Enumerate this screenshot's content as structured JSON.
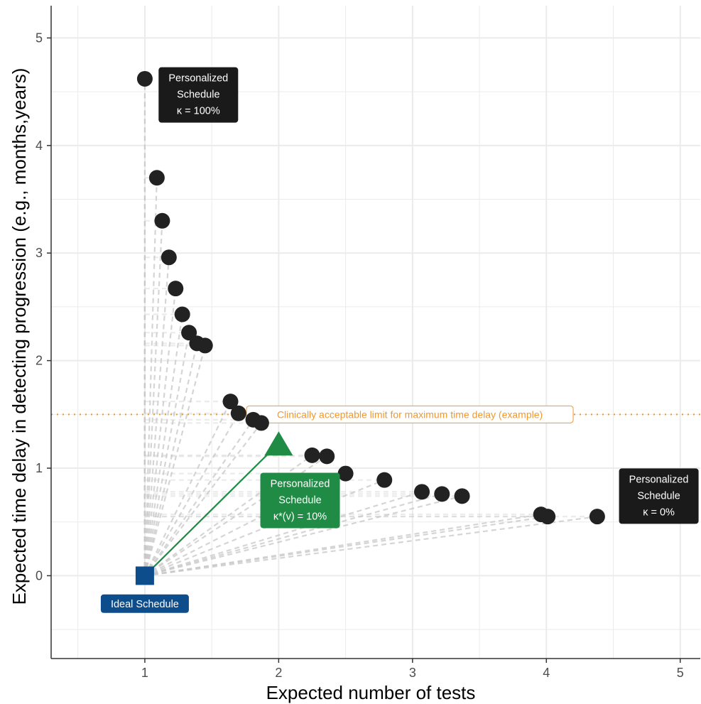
{
  "chart_data": {
    "type": "scatter",
    "xlabel": "Expected number of tests",
    "ylabel": "Expected time delay in detecting progression (e.g., months,years)",
    "xlim": [
      0.3,
      5.15
    ],
    "ylim": [
      -0.77,
      5.3
    ],
    "x_ticks": [
      1,
      2,
      3,
      4,
      5
    ],
    "y_ticks": [
      0,
      1,
      2,
      3,
      4,
      5
    ],
    "grid": true,
    "colors": {
      "points": "#222222",
      "ideal": "#0e4d8c",
      "optimal": "#1f8b45",
      "limit": "#f0982e",
      "guide": "#c8c8c8",
      "grid": "#ebebeb",
      "label_dark": "#1a1a1a"
    },
    "ideal_schedule": {
      "x": 1,
      "y": 0,
      "label": "Ideal Schedule"
    },
    "optimal_schedule": {
      "x": 2.0,
      "y": 1.23,
      "label_lines": [
        "Personalized",
        "Schedule",
        "κ*(v) = 10%"
      ]
    },
    "reference_line": {
      "y": 1.5,
      "label": "Clinically acceptable limit for maximum time delay (example)"
    },
    "points": [
      {
        "x": 1.0,
        "y": 4.62
      },
      {
        "x": 1.09,
        "y": 3.7
      },
      {
        "x": 1.13,
        "y": 3.3
      },
      {
        "x": 1.18,
        "y": 2.96
      },
      {
        "x": 1.23,
        "y": 2.67
      },
      {
        "x": 1.28,
        "y": 2.43
      },
      {
        "x": 1.33,
        "y": 2.26
      },
      {
        "x": 1.39,
        "y": 2.16
      },
      {
        "x": 1.45,
        "y": 2.14
      },
      {
        "x": 1.64,
        "y": 1.62
      },
      {
        "x": 1.7,
        "y": 1.51
      },
      {
        "x": 1.81,
        "y": 1.45
      },
      {
        "x": 1.87,
        "y": 1.42
      },
      {
        "x": 2.25,
        "y": 1.12
      },
      {
        "x": 2.36,
        "y": 1.11
      },
      {
        "x": 2.5,
        "y": 0.95
      },
      {
        "x": 2.79,
        "y": 0.89
      },
      {
        "x": 3.07,
        "y": 0.78
      },
      {
        "x": 3.22,
        "y": 0.76
      },
      {
        "x": 3.37,
        "y": 0.74
      },
      {
        "x": 3.96,
        "y": 0.57
      },
      {
        "x": 4.01,
        "y": 0.55
      },
      {
        "x": 4.38,
        "y": 0.55
      }
    ],
    "annotations": [
      {
        "id": "kappa-100",
        "lines": [
          "Personalized",
          "Schedule",
          "κ = 100%"
        ],
        "x": 1.4,
        "y": 4.47
      },
      {
        "id": "kappa-0",
        "lines": [
          "Personalized",
          "Schedule",
          "κ = 0%"
        ],
        "x": 4.84,
        "y": 0.74
      }
    ]
  }
}
